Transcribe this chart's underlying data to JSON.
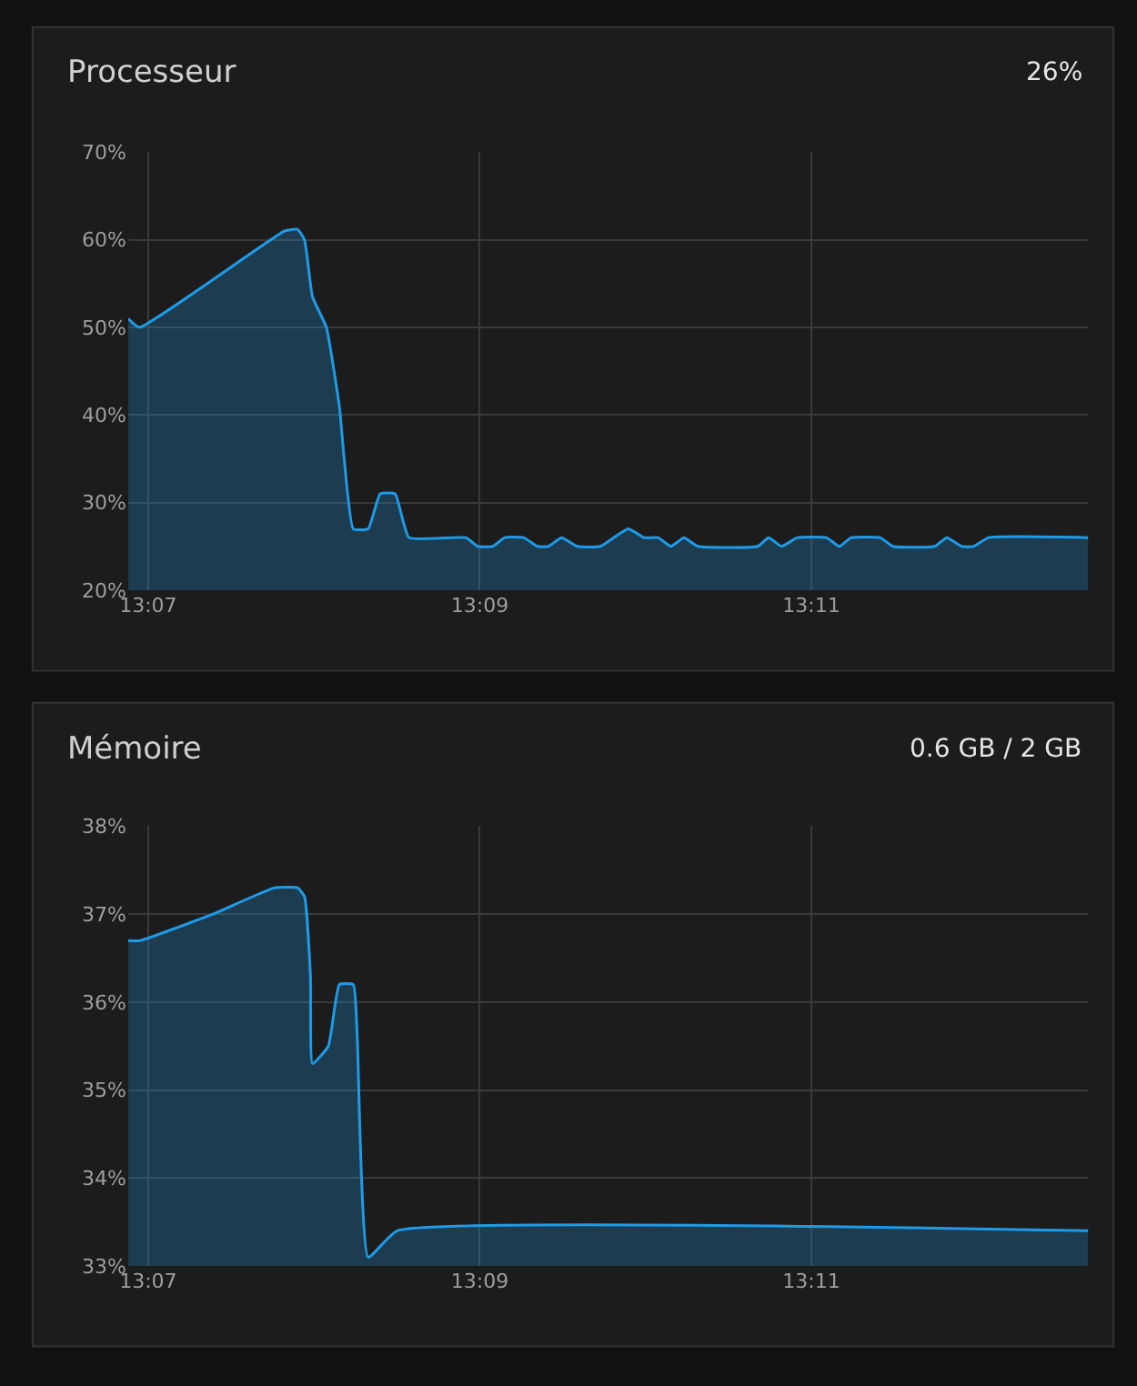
{
  "chart_data": [
    {
      "type": "area",
      "title": "Processeur",
      "annotations": [
        "26%"
      ],
      "x": [
        13.1147,
        13.1158,
        13.1304,
        13.1317,
        13.1324,
        13.1332,
        13.1346,
        13.1359,
        13.1373,
        13.1388,
        13.14,
        13.1415,
        13.1429,
        13.1486,
        13.1498,
        13.1513,
        13.1525,
        13.1544,
        13.1558,
        13.1569,
        13.1582,
        13.1598,
        13.1621,
        13.1649,
        13.1665,
        13.1679,
        13.1692,
        13.1705,
        13.1719,
        13.1779,
        13.179,
        13.1803,
        13.1819,
        13.1848,
        13.1861,
        13.1873,
        13.1902,
        13.1915,
        13.1957,
        13.1969,
        13.1984,
        13.1996,
        13.2011,
        13.2111
      ],
      "series": [
        {
          "color": "#1e9be8",
          "values": [
            51,
            50,
            61,
            61.2,
            60,
            53.5,
            50,
            41,
            27,
            27,
            31,
            31,
            26,
            26,
            25,
            25,
            26,
            26,
            25,
            25,
            26,
            25,
            25,
            27,
            26,
            26,
            25,
            26,
            25,
            25,
            26,
            25,
            26,
            26,
            25,
            26,
            26,
            25,
            25,
            26,
            25,
            25,
            26,
            26
          ]
        }
      ],
      "xlim": [
        13.1147,
        13.2111
      ],
      "xticks": [
        {
          "value": 13.1167,
          "label": "13:07"
        },
        {
          "value": 13.15,
          "label": "13:09"
        },
        {
          "value": 13.1833,
          "label": "13:11"
        }
      ],
      "ylim": [
        20,
        70
      ],
      "yticks": [
        {
          "value": 20,
          "label": "20%"
        },
        {
          "value": 30,
          "label": "30%"
        },
        {
          "value": 40,
          "label": "40%"
        },
        {
          "value": 50,
          "label": "50%"
        },
        {
          "value": 60,
          "label": "60%"
        },
        {
          "value": 70,
          "label": "70%"
        }
      ],
      "grid": true
    },
    {
      "type": "area",
      "title": "Mémoire",
      "annotations": [
        "0.6 GB / 2 GB"
      ],
      "x": [
        13.1147,
        13.1159,
        13.1232,
        13.1294,
        13.1317,
        13.1324,
        13.133,
        13.1332,
        13.1348,
        13.1359,
        13.1373,
        13.1377,
        13.1388,
        13.1417,
        13.2111
      ],
      "series": [
        {
          "color": "#1e9be8",
          "values": [
            36.7,
            36.7,
            37.0,
            37.3,
            37.3,
            37.2,
            36.3,
            35.3,
            35.5,
            36.2,
            36.2,
            35.6,
            33.1,
            33.4,
            33.4
          ]
        }
      ],
      "xlim": [
        13.1147,
        13.2111
      ],
      "xticks": [
        {
          "value": 13.1167,
          "label": "13:07"
        },
        {
          "value": 13.15,
          "label": "13:09"
        },
        {
          "value": 13.1833,
          "label": "13:11"
        }
      ],
      "ylim": [
        33,
        38
      ],
      "yticks": [
        {
          "value": 33,
          "label": "33%"
        },
        {
          "value": 34,
          "label": "34%"
        },
        {
          "value": 35,
          "label": "35%"
        },
        {
          "value": 36,
          "label": "36%"
        },
        {
          "value": 37,
          "label": "37%"
        },
        {
          "value": 38,
          "label": "38%"
        }
      ],
      "grid": true
    }
  ]
}
